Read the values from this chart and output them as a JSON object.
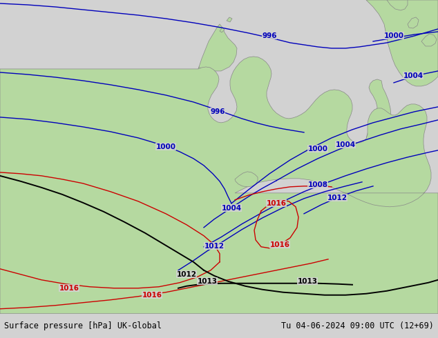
{
  "title_left": "Surface pressure [hPa] UK-Global",
  "title_right": "Tu 04-06-2024 09:00 UTC (12+69)",
  "bg_color": "#d2d2d2",
  "land_color": "#b5d9a0",
  "border_color": "#888888",
  "blue": "#0000bb",
  "black": "#000000",
  "red": "#cc0000",
  "footer_bg": "#d8d8d8",
  "lw_blue": 1.0,
  "lw_black": 1.4,
  "lw_red": 1.0,
  "fs": 7.5
}
